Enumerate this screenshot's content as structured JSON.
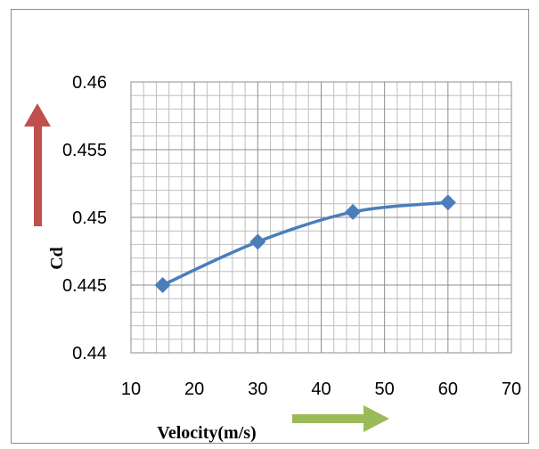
{
  "chart_data": {
    "type": "line",
    "x": [
      15,
      30,
      45,
      60
    ],
    "series": [
      {
        "values": [
          0.445,
          0.4482,
          0.4504,
          0.4511
        ]
      }
    ],
    "xlabel": "Velocity(m/s)",
    "ylabel": "Cd",
    "xlim": [
      10,
      70
    ],
    "ylim": [
      0.44,
      0.46
    ],
    "xticks": [
      10,
      20,
      30,
      40,
      50,
      60,
      70
    ],
    "xtick_labels": [
      "10",
      "20",
      "30",
      "40",
      "50",
      "60",
      "70"
    ],
    "yticks": [
      0.44,
      0.445,
      0.45,
      0.455,
      0.46
    ],
    "ytick_labels": [
      "0.44",
      "0.445",
      "0.45",
      "0.455",
      "0.46"
    ],
    "grid": true,
    "legend": "none",
    "marker": "diamond",
    "colors": {
      "series": "#4a7ebb",
      "grid_major": "#8c8c8c",
      "grid_minor": "#bfbfbf",
      "arrow_y": "#c0504d",
      "arrow_x": "#9bbb59"
    }
  }
}
